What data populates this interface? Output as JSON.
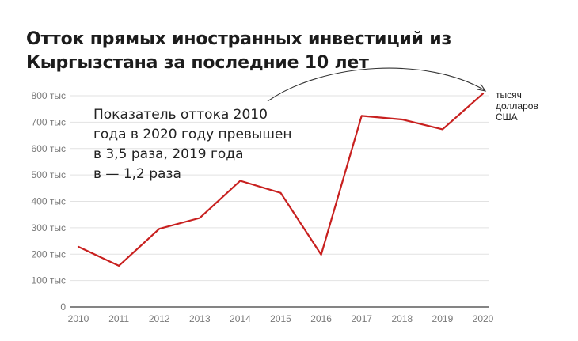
{
  "chart_data": {
    "type": "line",
    "title_lines": [
      "Отток прямых иностранных инвестиций из",
      "Кыргызстана за последние 10 лет"
    ],
    "x": [
      "2010",
      "2011",
      "2012",
      "2013",
      "2014",
      "2015",
      "2016",
      "2017",
      "2018",
      "2019",
      "2020"
    ],
    "series": [
      {
        "values": [
          228,
          156,
          296,
          337,
          478,
          432,
          198,
          724,
          710,
          673,
          808
        ],
        "color": "#c8201f"
      }
    ],
    "ylim": [
      0,
      800
    ],
    "y_ticks": [
      {
        "value": 0,
        "label": "0"
      },
      {
        "value": 100,
        "label": "100 тыс"
      },
      {
        "value": 200,
        "label": "200 тыс"
      },
      {
        "value": 300,
        "label": "300 тыс"
      },
      {
        "value": 400,
        "label": "400 тыс"
      },
      {
        "value": 500,
        "label": "500 тыс"
      },
      {
        "value": 600,
        "label": "600 тыс"
      },
      {
        "value": 700,
        "label": "700 тыс"
      },
      {
        "value": 800,
        "label": "800 тыс"
      }
    ],
    "grid": true,
    "annotation_lines": [
      "Показатель оттока 2010",
      "года в 2020 году превышен",
      "в 3,5 раза, 2019 года",
      "в — 1,2 раза"
    ],
    "unit_lines": [
      "тысяч",
      "долларов",
      "США"
    ],
    "colors": {
      "line": "#c8201f",
      "grid": "#e2e2e2",
      "axis": "#3a3a3a",
      "tick_text": "#7a7a7a",
      "arrow": "#333333"
    }
  }
}
